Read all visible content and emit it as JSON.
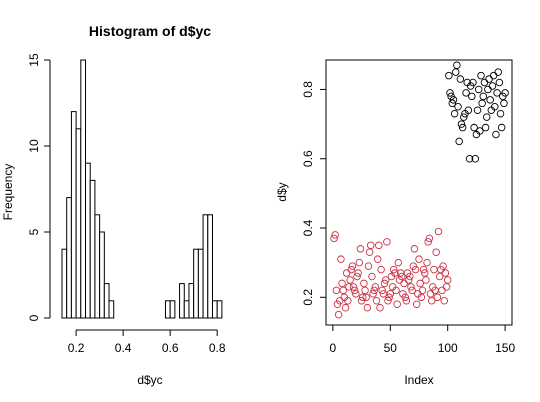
{
  "chart_data": [
    {
      "type": "bar",
      "title": "Histogram of d$yc",
      "xlabel": "d$yc",
      "ylabel": "Frequency",
      "bin_width": 0.02,
      "bin_start": 0.14,
      "counts": [
        4,
        7,
        12,
        11,
        15,
        9,
        8,
        6,
        5,
        2,
        1,
        0,
        0,
        0,
        0,
        0,
        0,
        0,
        0,
        0,
        0,
        0,
        1,
        1,
        0,
        2,
        1,
        2,
        4,
        4,
        6,
        6,
        1,
        1
      ],
      "xlim": [
        0.14,
        0.88
      ],
      "ylim": [
        0,
        15
      ],
      "xticks": [
        0.2,
        0.4,
        0.6,
        0.8
      ],
      "yticks": [
        0,
        5,
        10,
        15
      ],
      "xtick_labels": [
        "0.2",
        "0.4",
        "0.6",
        "0.8"
      ],
      "ytick_labels": [
        "0",
        "5",
        "10",
        "15"
      ],
      "grid": false
    },
    {
      "type": "scatter",
      "title": "",
      "xlabel": "Index",
      "ylabel": "d$y",
      "xlim": [
        -6,
        156
      ],
      "ylim": [
        0.12,
        0.885
      ],
      "xticks": [
        0,
        50,
        100,
        150
      ],
      "yticks": [
        0.2,
        0.4,
        0.6,
        0.8
      ],
      "xtick_labels": [
        "0",
        "50",
        "100",
        "150"
      ],
      "ytick_labels": [
        "0.2",
        "0.4",
        "0.6",
        "0.8"
      ],
      "grid": false,
      "series": [
        {
          "color": "#cc3344",
          "x": [
            1,
            2,
            3,
            4,
            5,
            6,
            7,
            8,
            9,
            10,
            11,
            12,
            13,
            14,
            15,
            16,
            17,
            18,
            19,
            20,
            21,
            22,
            23,
            24,
            25,
            26,
            27,
            28,
            29,
            30,
            31,
            32,
            33,
            34,
            35,
            36,
            37,
            38,
            39,
            40,
            41,
            42,
            43,
            44,
            45,
            46,
            47,
            48,
            49,
            50,
            51,
            52,
            53,
            54,
            55,
            56,
            57,
            58,
            59,
            60,
            61,
            62,
            63,
            64,
            65,
            66,
            67,
            68,
            69,
            70,
            71,
            72,
            73,
            74,
            75,
            76,
            77,
            78,
            79,
            80,
            81,
            82,
            83,
            84,
            85,
            86,
            87,
            88,
            89,
            90,
            91,
            92,
            93,
            94,
            95,
            96,
            97,
            98,
            99,
            100
          ],
          "y": [
            0.37,
            0.38,
            0.22,
            0.18,
            0.15,
            0.19,
            0.31,
            0.24,
            0.22,
            0.2,
            0.17,
            0.27,
            0.19,
            0.23,
            0.25,
            0.28,
            0.29,
            0.23,
            0.22,
            0.21,
            0.26,
            0.27,
            0.3,
            0.34,
            0.19,
            0.2,
            0.24,
            0.22,
            0.2,
            0.17,
            0.29,
            0.33,
            0.35,
            0.26,
            0.21,
            0.22,
            0.23,
            0.19,
            0.31,
            0.35,
            0.17,
            0.28,
            0.22,
            0.21,
            0.24,
            0.25,
            0.36,
            0.19,
            0.2,
            0.21,
            0.26,
            0.23,
            0.28,
            0.27,
            0.22,
            0.18,
            0.3,
            0.25,
            0.27,
            0.26,
            0.21,
            0.24,
            0.2,
            0.19,
            0.27,
            0.25,
            0.26,
            0.23,
            0.22,
            0.29,
            0.34,
            0.28,
            0.18,
            0.21,
            0.31,
            0.24,
            0.2,
            0.22,
            0.28,
            0.27,
            0.25,
            0.3,
            0.36,
            0.37,
            0.21,
            0.19,
            0.23,
            0.28,
            0.22,
            0.33,
            0.2,
            0.39,
            0.26,
            0.28,
            0.22,
            0.29,
            0.19,
            0.27,
            0.23,
            0.25
          ]
        },
        {
          "color": "#000000",
          "x": [
            101,
            102,
            103,
            104,
            105,
            106,
            107,
            108,
            109,
            110,
            111,
            112,
            113,
            114,
            115,
            116,
            117,
            118,
            119,
            120,
            121,
            122,
            123,
            124,
            125,
            126,
            127,
            128,
            129,
            130,
            131,
            132,
            133,
            134,
            135,
            136,
            137,
            138,
            139,
            140,
            141,
            142,
            143,
            144,
            145,
            146,
            147,
            148,
            149,
            150
          ],
          "y": [
            0.84,
            0.79,
            0.78,
            0.76,
            0.77,
            0.73,
            0.85,
            0.87,
            0.75,
            0.65,
            0.83,
            0.7,
            0.69,
            0.72,
            0.73,
            0.79,
            0.82,
            0.74,
            0.6,
            0.81,
            0.78,
            0.82,
            0.69,
            0.6,
            0.67,
            0.74,
            0.8,
            0.68,
            0.84,
            0.76,
            0.78,
            0.82,
            0.69,
            0.72,
            0.8,
            0.83,
            0.77,
            0.74,
            0.81,
            0.84,
            0.75,
            0.67,
            0.79,
            0.85,
            0.82,
            0.73,
            0.69,
            0.78,
            0.76,
            0.79
          ]
        }
      ]
    }
  ]
}
